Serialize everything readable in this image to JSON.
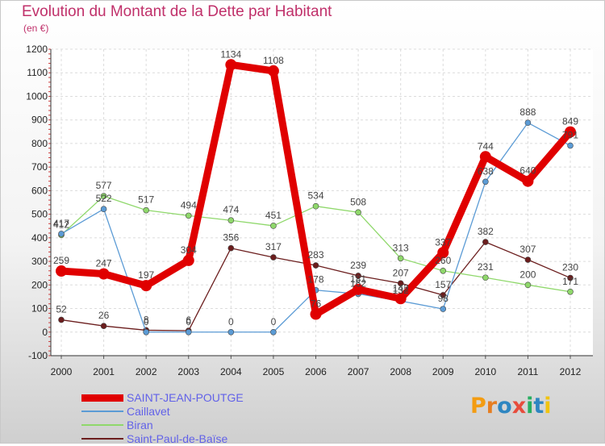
{
  "title": "Evolution du Montant de la Dette par Habitant",
  "subtitle": "(en €)",
  "logo": {
    "text": "Proxiti",
    "colors": [
      "#f39c12",
      "#e67e22",
      "#2e86c1",
      "#e74c3c",
      "#27ae60",
      "#2e86c1",
      "#f1c40f"
    ]
  },
  "chart_data": {
    "type": "line",
    "title": "Evolution du Montant de la Dette par Habitant",
    "ylabel": "(en €)",
    "categories": [
      "2000",
      "2001",
      "2002",
      "2003",
      "2004",
      "2005",
      "2006",
      "2007",
      "2008",
      "2009",
      "2010",
      "2011",
      "2012"
    ],
    "ylim": [
      -100,
      1200
    ],
    "yticks": [
      -100,
      0,
      100,
      200,
      300,
      400,
      500,
      600,
      700,
      800,
      900,
      1000,
      1100,
      1200
    ],
    "yticks_labels": [
      "-100",
      "0",
      "100",
      "200",
      "300",
      "400",
      "500",
      "600",
      "700",
      "800",
      "900",
      "1000",
      "1100",
      "1200"
    ],
    "grid": true,
    "legend_position": "bottom-left",
    "series": [
      {
        "name": "SAINT-JEAN-POUTGE",
        "color": "#e00000",
        "values": [
          259,
          247,
          197,
          304,
          1134,
          1108,
          76,
          181,
          142,
          337,
          744,
          640,
          849
        ]
      },
      {
        "name": "Caillavet",
        "color": "#5b9bd5",
        "values": [
          417,
          522,
          0,
          0,
          0,
          0,
          178,
          162,
          132,
          98,
          638,
          888,
          791
        ]
      },
      {
        "name": "Biran",
        "color": "#8fd86b",
        "values": [
          412,
          577,
          517,
          494,
          474,
          451,
          534,
          508,
          313,
          260,
          231,
          200,
          171
        ]
      },
      {
        "name": "Saint-Paul-de-Baïse",
        "color": "#6b1d1d",
        "values": [
          52,
          26,
          8,
          6,
          356,
          317,
          283,
          239,
          207,
          157,
          382,
          307,
          230
        ]
      }
    ]
  }
}
